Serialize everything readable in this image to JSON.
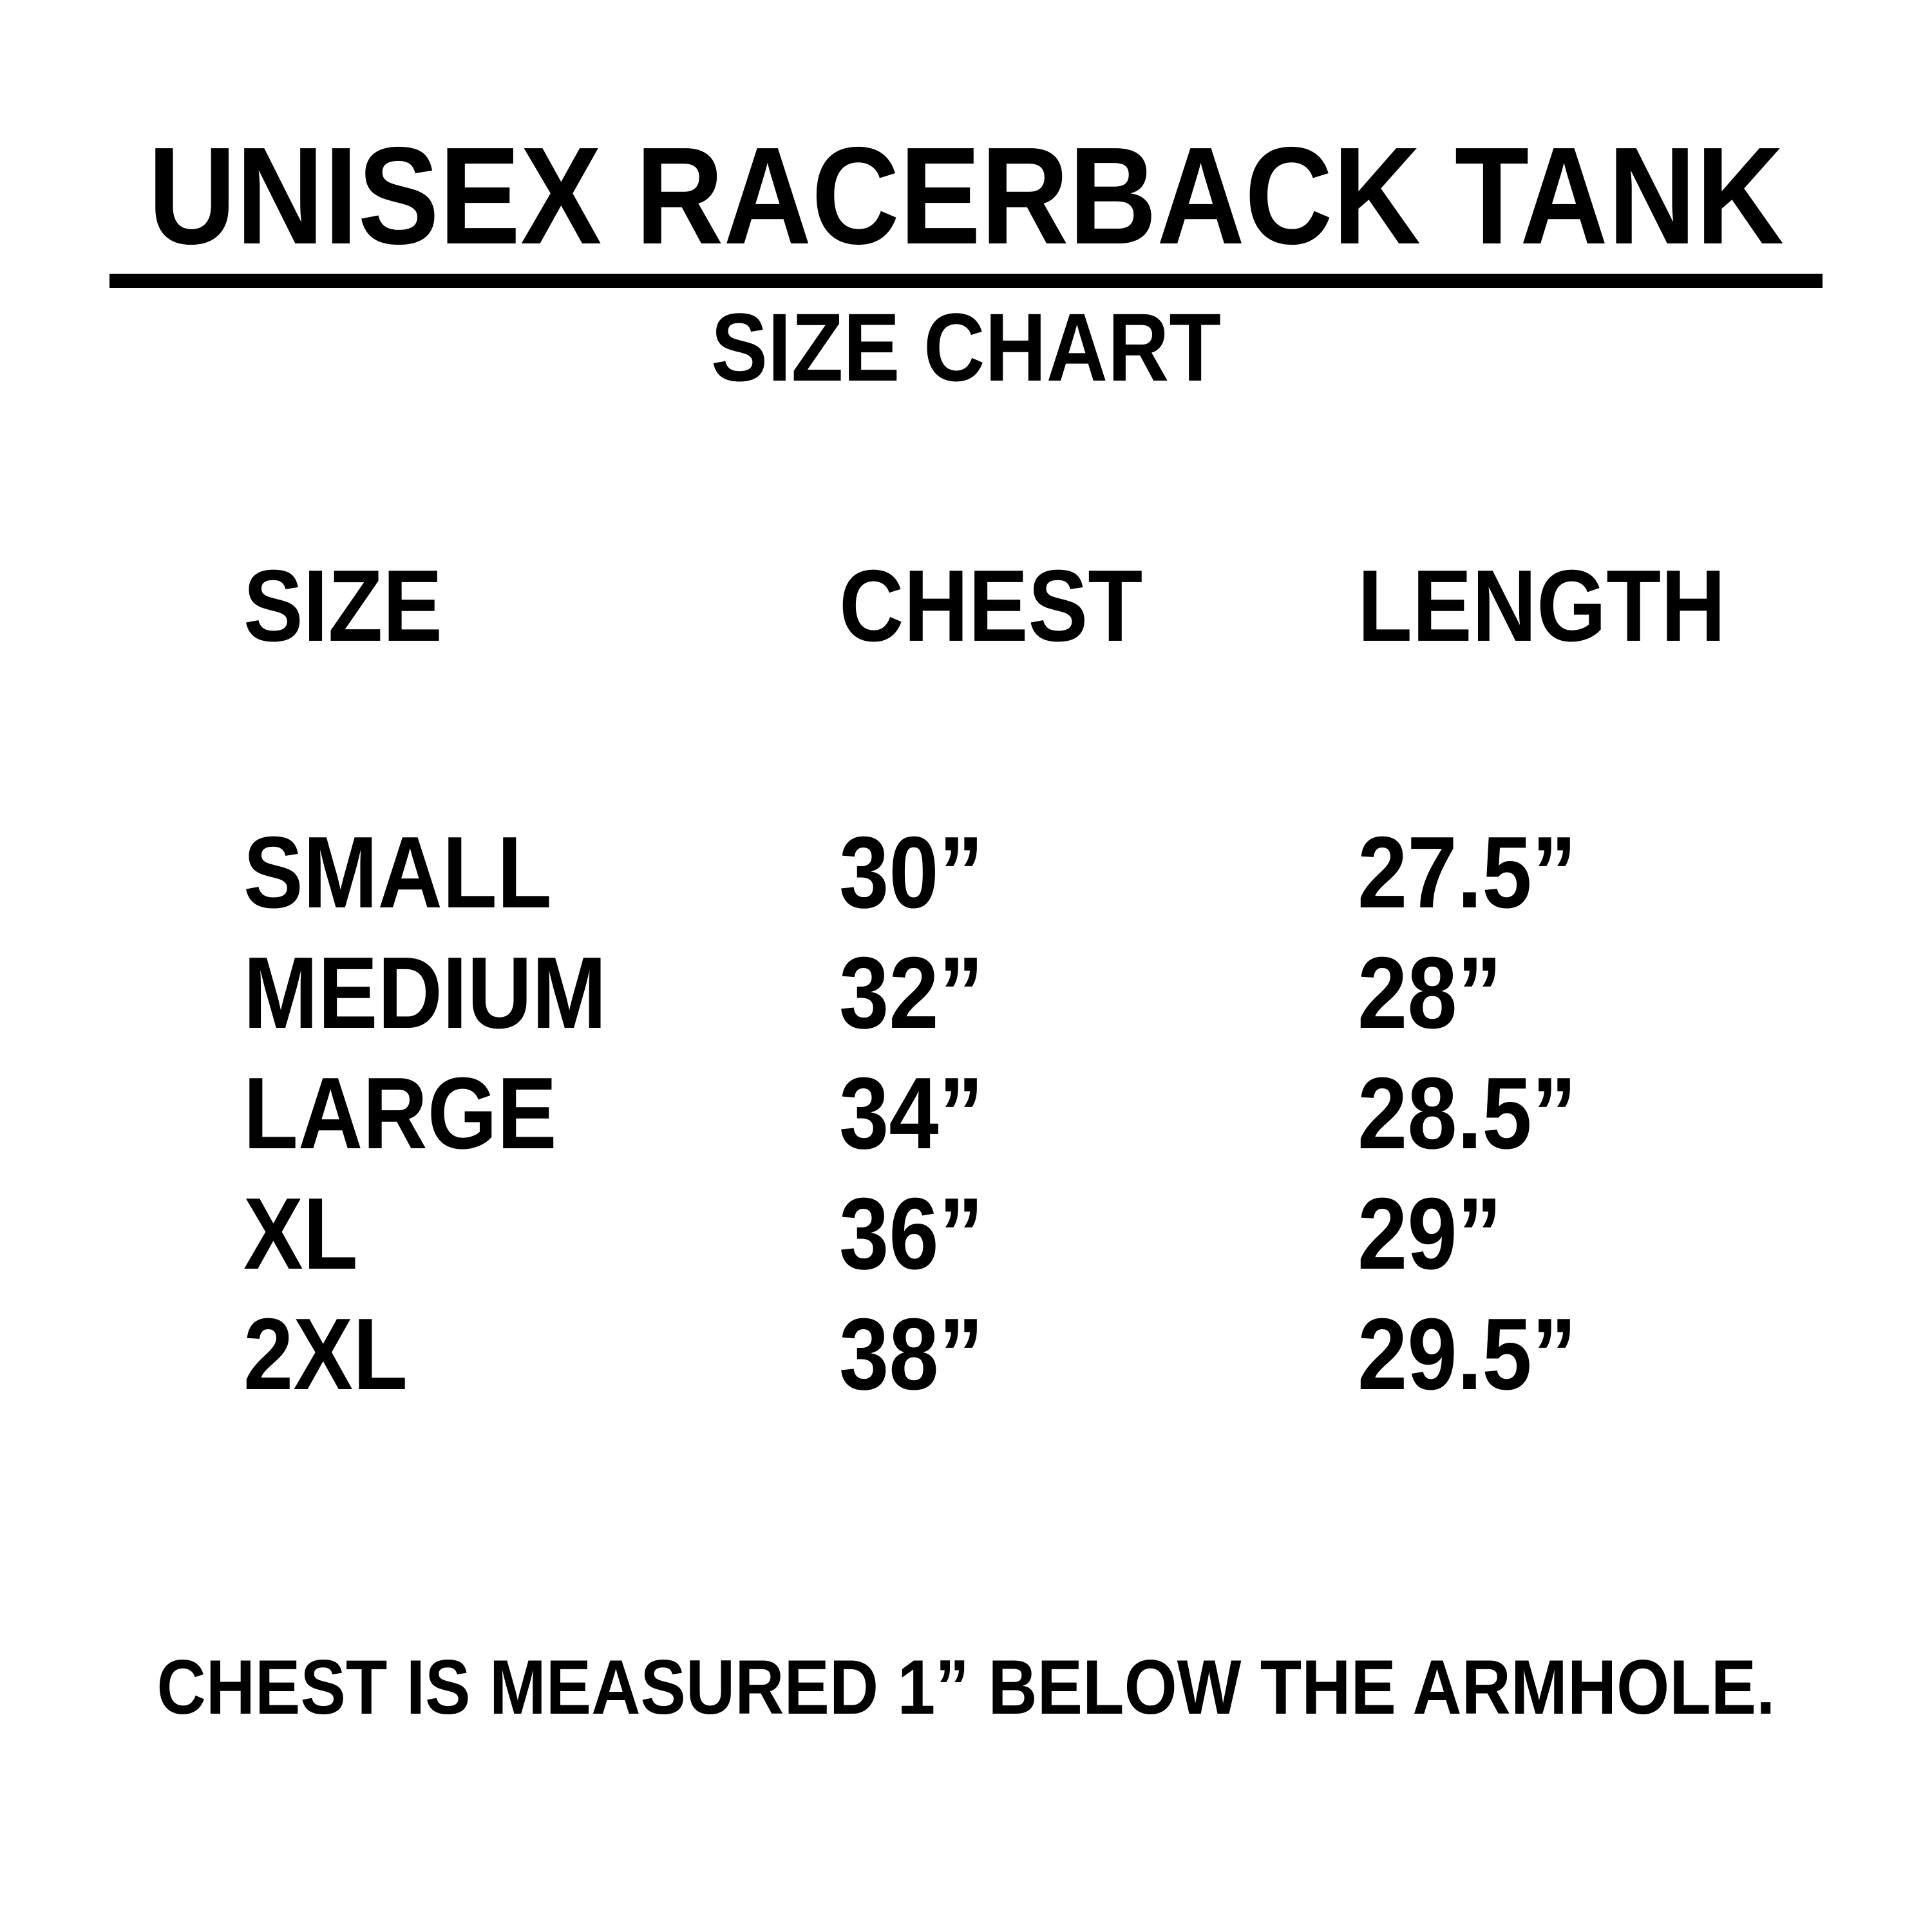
{
  "header": {
    "title": "UNISEX RACERBACK TANK",
    "subtitle": "SIZE CHART"
  },
  "table": {
    "columns": [
      "SIZE",
      "CHEST",
      "LENGTH"
    ],
    "rows": [
      {
        "size": "SMALL",
        "chest": "30”",
        "length": "27.5”"
      },
      {
        "size": "MEDIUM",
        "chest": "32”",
        "length": "28”"
      },
      {
        "size": "LARGE",
        "chest": "34”",
        "length": "28.5”"
      },
      {
        "size": "XL",
        "chest": "36”",
        "length": "29”"
      },
      {
        "size": "2XL",
        "chest": "38”",
        "length": "29.5”"
      }
    ]
  },
  "footer": {
    "note": "CHEST IS MEASURED 1” BELOW THE ARMHOLE."
  },
  "colors": {
    "text": "#000000",
    "background": "#ffffff"
  },
  "chart_data": {
    "type": "table",
    "title": "UNISEX RACERBACK TANK",
    "subtitle": "SIZE CHART",
    "columns": [
      "SIZE",
      "CHEST",
      "LENGTH"
    ],
    "rows": [
      [
        "SMALL",
        "30”",
        "27.5”"
      ],
      [
        "MEDIUM",
        "32”",
        "28”"
      ],
      [
        "LARGE",
        "34”",
        "28.5”"
      ],
      [
        "XL",
        "36”",
        "29”"
      ],
      [
        "2XL",
        "38”",
        "29.5”"
      ]
    ],
    "units": "inches",
    "note": "CHEST IS MEASURED 1” BELOW THE ARMHOLE."
  }
}
